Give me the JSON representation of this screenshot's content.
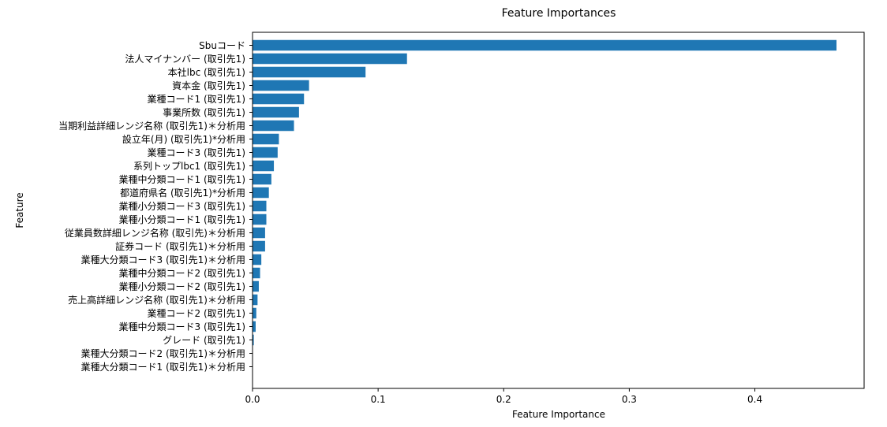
{
  "chart_data": {
    "type": "bar",
    "orientation": "horizontal",
    "title": "Feature Importances",
    "xlabel": "Feature Importance",
    "ylabel": "Feature",
    "xlim": [
      0,
      0.487
    ],
    "xticks": [
      0.0,
      0.1,
      0.2,
      0.3,
      0.4
    ],
    "xtick_labels": [
      "0.0",
      "0.1",
      "0.2",
      "0.3",
      "0.4"
    ],
    "grid": false,
    "bar_color": "#1f77b4",
    "categories": [
      "Sbuコード",
      "法人マイナンバー (取引先1)",
      "本社lbc (取引先1)",
      "資本金 (取引先1)",
      "業種コード1 (取引先1)",
      "事業所数 (取引先1)",
      "当期利益詳細レンジ名称 (取引先1)＊分析用",
      "設立年(月) (取引先1)*分析用",
      "業種コード3 (取引先1)",
      "系列トップlbc1 (取引先1)",
      "業種中分類コード1 (取引先1)",
      "都道府県名 (取引先1)*分析用",
      "業種小分類コード3 (取引先1)",
      "業種小分類コード1 (取引先1)",
      "従業員数詳細レンジ名称 (取引先)＊分析用",
      "証券コード (取引先1)＊分析用",
      "業種大分類コード3 (取引先1)＊分析用",
      "業種中分類コード2 (取引先1)",
      "業種小分類コード2 (取引先1)",
      "売上高詳細レンジ名称 (取引先1)＊分析用",
      "業種コード2 (取引先1)",
      "業種中分類コード3 (取引先1)",
      "グレード (取引先1)",
      "業種大分類コード2 (取引先1)＊分析用",
      "業種大分類コード1 (取引先1)＊分析用"
    ],
    "values": [
      0.465,
      0.123,
      0.09,
      0.045,
      0.041,
      0.037,
      0.033,
      0.021,
      0.02,
      0.017,
      0.015,
      0.013,
      0.011,
      0.011,
      0.01,
      0.01,
      0.007,
      0.006,
      0.005,
      0.004,
      0.003,
      0.0025,
      0.001,
      0.0003,
      0.0002
    ]
  }
}
